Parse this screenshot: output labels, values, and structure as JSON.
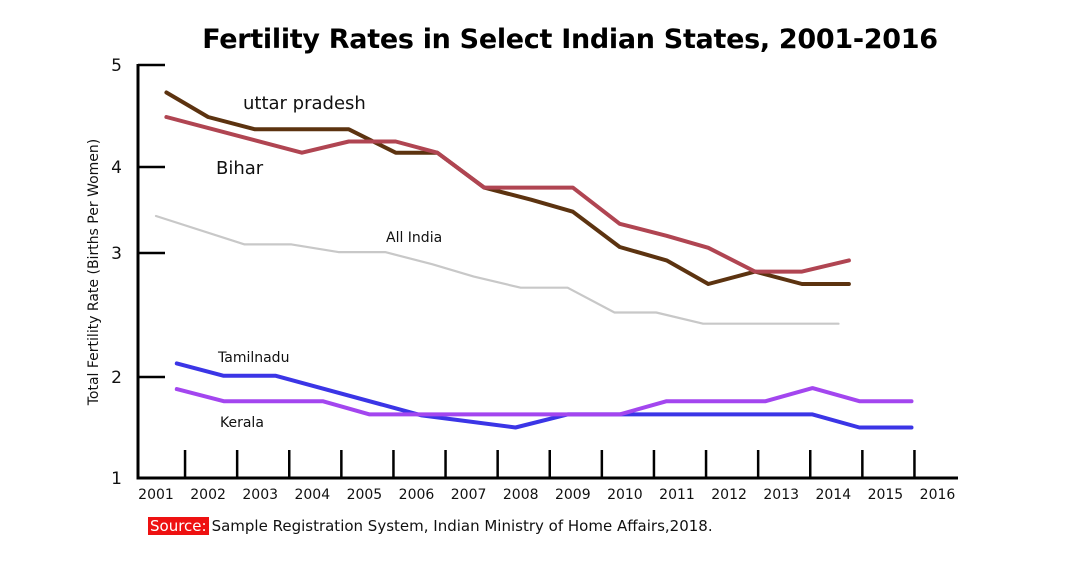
{
  "chart_data": {
    "type": "line",
    "title": "Fertility Rates in Select Indian States, 2001-2016",
    "xlabel": "",
    "ylabel": "Total Fertility Rate (Births Per Women)",
    "x_ticks": [
      "2001",
      "2002",
      "2003",
      "2004",
      "2005",
      "2006",
      "2007",
      "2008",
      "2009",
      "2010",
      "2011",
      "2012",
      "2013",
      "2014",
      "2015",
      "2016"
    ],
    "y_ticks": [
      1,
      2,
      3,
      4,
      5
    ],
    "ylim": [
      1,
      5
    ],
    "xlim": [
      2001,
      2016
    ],
    "grid": false,
    "series": [
      {
        "name": "uttar pradesh",
        "label": "uttar pradesh",
        "color": "#5c3310",
        "points": [
          [
            2001.2,
            4.73
          ],
          [
            2002.0,
            4.49
          ],
          [
            2002.9,
            4.37
          ],
          [
            2004.7,
            4.37
          ],
          [
            2005.6,
            4.14
          ],
          [
            2006.4,
            4.14
          ],
          [
            2007.3,
            3.76
          ],
          [
            2008.2,
            3.62
          ],
          [
            2009.0,
            3.48
          ],
          [
            2009.9,
            3.07
          ],
          [
            2010.8,
            2.94
          ],
          [
            2011.6,
            2.75
          ],
          [
            2012.5,
            2.85
          ],
          [
            2013.4,
            2.75
          ],
          [
            2014.3,
            2.75
          ]
        ]
      },
      {
        "name": "Bihar",
        "label": "Bihar",
        "color": "#b04552",
        "points": [
          [
            2001.2,
            4.49
          ],
          [
            2003.8,
            4.14
          ],
          [
            2004.7,
            4.25
          ],
          [
            2005.6,
            4.25
          ],
          [
            2006.4,
            4.14
          ],
          [
            2007.3,
            3.76
          ],
          [
            2009.0,
            3.76
          ],
          [
            2009.9,
            3.34
          ],
          [
            2010.8,
            3.2
          ],
          [
            2011.6,
            3.06
          ],
          [
            2012.5,
            2.85
          ],
          [
            2013.4,
            2.85
          ],
          [
            2014.3,
            2.94
          ]
        ]
      },
      {
        "name": "All India",
        "label": "All India",
        "color": "#c8c8c8",
        "points": [
          [
            2001.0,
            3.43
          ],
          [
            2002.7,
            3.1
          ],
          [
            2003.6,
            3.1
          ],
          [
            2004.5,
            3.01
          ],
          [
            2005.4,
            3.01
          ],
          [
            2006.3,
            2.91
          ],
          [
            2007.1,
            2.81
          ],
          [
            2008.0,
            2.72
          ],
          [
            2008.9,
            2.72
          ],
          [
            2009.8,
            2.52
          ],
          [
            2010.6,
            2.52
          ],
          [
            2011.5,
            2.43
          ],
          [
            2012.4,
            2.43
          ],
          [
            2013.3,
            2.43
          ],
          [
            2014.1,
            2.43
          ]
        ]
      },
      {
        "name": "Tamilnadu",
        "label": "Tamilnadu",
        "color": "#3b35e6",
        "points": [
          [
            2001.4,
            2.11
          ],
          [
            2002.3,
            2.01
          ],
          [
            2003.3,
            2.01
          ],
          [
            2006.1,
            1.62
          ],
          [
            2007.9,
            1.5
          ],
          [
            2008.9,
            1.63
          ],
          [
            2013.6,
            1.63
          ],
          [
            2014.5,
            1.5
          ],
          [
            2015.5,
            1.5
          ]
        ]
      },
      {
        "name": "Kerala",
        "label": "Kerala",
        "color": "#a346ef",
        "points": [
          [
            2001.4,
            1.88
          ],
          [
            2002.3,
            1.76
          ],
          [
            2004.2,
            1.76
          ],
          [
            2005.1,
            1.63
          ],
          [
            2009.9,
            1.63
          ],
          [
            2010.8,
            1.76
          ],
          [
            2012.7,
            1.76
          ],
          [
            2013.6,
            1.89
          ],
          [
            2014.5,
            1.76
          ],
          [
            2015.5,
            1.76
          ]
        ]
      }
    ],
    "annotations": [
      "uttar pradesh",
      "Bihar",
      "All India",
      "Tamilnadu",
      "Kerala"
    ]
  },
  "source": {
    "tag": "Source:",
    "text": "Sample Registration System, Indian Ministry of Home Affairs,2018."
  }
}
